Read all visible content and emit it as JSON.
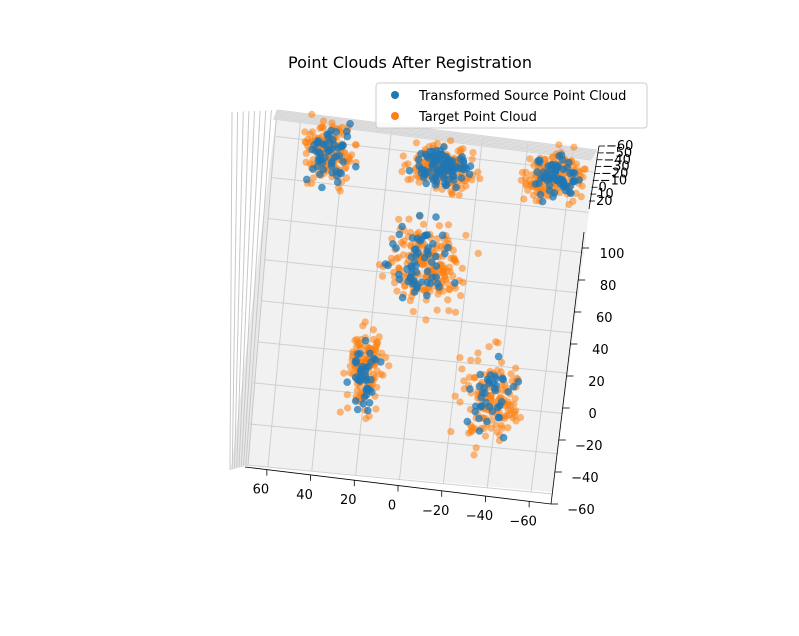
{
  "chart_data": {
    "type": "scatter",
    "projection": "3d",
    "title": "Point Clouds After Registration",
    "legend": {
      "placement": "top-right",
      "entries": [
        {
          "name": "Transformed Source Point Cloud",
          "color": "#1f77b4"
        },
        {
          "name": "Target Point Cloud",
          "color": "#ff7f0e"
        }
      ]
    },
    "axes": {
      "x": {
        "ticks": [
          60,
          40,
          20,
          0,
          -20,
          -40,
          -60
        ],
        "tick_labels": [
          "60",
          "40",
          "20",
          "0",
          "−20",
          "−40",
          "−60"
        ],
        "lim": [
          70,
          -70
        ]
      },
      "y": {
        "ticks": [
          100,
          80,
          60,
          40,
          20,
          0,
          -20,
          -40,
          -60
        ],
        "tick_labels": [
          "100",
          "80",
          "60",
          "40",
          "20",
          "0",
          "−20",
          "−40",
          "−60"
        ],
        "lim": [
          110,
          -60
        ]
      },
      "z": {
        "ticks": [
          -60,
          -50,
          -40,
          -30,
          -20,
          -10,
          0,
          10,
          20
        ],
        "tick_labels": [
          "−60",
          "−50",
          "−40",
          "−30",
          "−20",
          "−10",
          "0",
          "10",
          "20"
        ],
        "lim": [
          -65,
          25
        ]
      }
    },
    "grid": true,
    "panes": "light gray",
    "shape": "bunny-like figure viewed from above: two ears at top-left and top-right, a head cluster at top-center, torso down the middle, two legs ending in feet at the bottom",
    "series": [
      {
        "name": "Transformed Source Point Cloud",
        "color": "#1f77b4",
        "approx_points": 350,
        "clusters": [
          {
            "region": "left ear",
            "x": [
              60,
              32
            ],
            "y": [
              115,
              75
            ],
            "n": 55
          },
          {
            "region": "center head",
            "x": [
              14,
              -22
            ],
            "y": [
              108,
              80
            ],
            "n": 90
          },
          {
            "region": "right ear",
            "x": [
              -38,
              -68
            ],
            "y": [
              112,
              80
            ],
            "n": 65
          },
          {
            "region": "torso",
            "x": [
              20,
              -20
            ],
            "y": [
              75,
              20
            ],
            "n": 60
          },
          {
            "region": "left leg",
            "x": [
              30,
              12
            ],
            "y": [
              15,
              -35
            ],
            "n": 40
          },
          {
            "region": "right leg",
            "x": [
              -20,
              -55
            ],
            "y": [
              15,
              -45
            ],
            "n": 40
          }
        ]
      },
      {
        "name": "Target Point Cloud",
        "color": "#ff7f0e",
        "approx_points": 900,
        "clusters": [
          {
            "region": "left ear",
            "x": [
              62,
              30
            ],
            "y": [
              118,
              72
            ],
            "n": 140
          },
          {
            "region": "center head",
            "x": [
              18,
              -26
            ],
            "y": [
              110,
              78
            ],
            "n": 170
          },
          {
            "region": "right ear",
            "x": [
              -35,
              -70
            ],
            "y": [
              115,
              78
            ],
            "n": 150
          },
          {
            "region": "torso",
            "x": [
              24,
              -26
            ],
            "y": [
              78,
              15
            ],
            "n": 190
          },
          {
            "region": "left leg",
            "x": [
              34,
              8
            ],
            "y": [
              18,
              -38
            ],
            "n": 120
          },
          {
            "region": "right leg",
            "x": [
              -16,
              -60
            ],
            "y": [
              18,
              -48
            ],
            "n": 130
          }
        ]
      }
    ]
  }
}
